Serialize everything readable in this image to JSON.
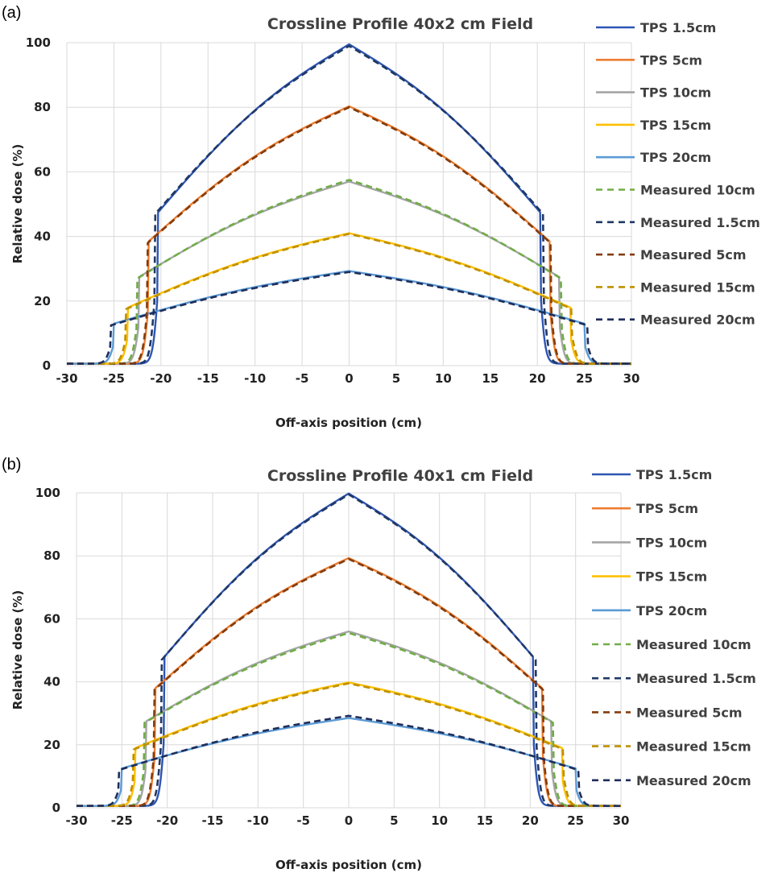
{
  "chart_data": [
    {
      "type": "line",
      "panel_label": "(a)",
      "title": "Crossline Profile 40x2 cm Field",
      "xlabel": "Off-axis position (cm)",
      "ylabel": "Relative dose (%)",
      "xlim": [
        -30,
        30
      ],
      "ylim": [
        0,
        100
      ],
      "xticks": [
        "-30",
        "-25",
        "-20",
        "-15",
        "-10",
        "-5",
        "0",
        "5",
        "10",
        "15",
        "20",
        "25",
        "30"
      ],
      "yticks": [
        "0",
        "20",
        "40",
        "60",
        "80",
        "100"
      ],
      "grid": true,
      "legend_position": "right",
      "series": [
        {
          "name": "TPS 1.5cm",
          "color": "#2e55b3",
          "style": "solid",
          "edge": 20.3,
          "shoulder": 47.5,
          "peak": 99.5
        },
        {
          "name": "TPS 5cm",
          "color": "#ed7d31",
          "style": "solid",
          "edge": 21.3,
          "shoulder": 38.5,
          "peak": 80.3
        },
        {
          "name": "TPS 10cm",
          "color": "#a5a5a5",
          "style": "solid",
          "edge": 22.3,
          "shoulder": 27.5,
          "peak": 57.0
        },
        {
          "name": "TPS 15cm",
          "color": "#ffc000",
          "style": "solid",
          "edge": 23.5,
          "shoulder": 18.0,
          "peak": 41.0
        },
        {
          "name": "TPS 20cm",
          "color": "#5b9bd5",
          "style": "solid",
          "edge": 25.0,
          "shoulder": 13.0,
          "peak": 29.3
        },
        {
          "name": "Measured 10cm",
          "color": "#70ad47",
          "style": "dashed",
          "edge": 22.5,
          "shoulder": 27.0,
          "peak": 57.5
        },
        {
          "name": "Measured 1.5cm",
          "color": "#203864",
          "style": "dashed",
          "edge": 20.6,
          "shoulder": 47.0,
          "peak": 99.0
        },
        {
          "name": "Measured 5cm",
          "color": "#843c0c",
          "style": "dashed",
          "edge": 21.4,
          "shoulder": 38.0,
          "peak": 80.0
        },
        {
          "name": "Measured 15cm",
          "color": "#bf9000",
          "style": "dashed",
          "edge": 23.7,
          "shoulder": 17.5,
          "peak": 40.8
        },
        {
          "name": "Measured 20cm",
          "color": "#1f2d5a",
          "style": "dashed",
          "edge": 25.3,
          "shoulder": 12.5,
          "peak": 29.0
        }
      ]
    },
    {
      "type": "line",
      "panel_label": "(b)",
      "title": "Crossline Profile 40x1 cm Field",
      "xlabel": "Off-axis position (cm)",
      "ylabel": "Relative dose (%)",
      "xlim": [
        -30,
        30
      ],
      "ylim": [
        0,
        100
      ],
      "xticks": [
        "-30",
        "-25",
        "-20",
        "-15",
        "-10",
        "-5",
        "0",
        "5",
        "10",
        "15",
        "20",
        "25",
        "30"
      ],
      "yticks": [
        "0",
        "20",
        "40",
        "60",
        "80",
        "100"
      ],
      "grid": true,
      "legend_position": "right",
      "series": [
        {
          "name": "TPS 1.5cm",
          "color": "#2e55b3",
          "style": "solid",
          "edge": 20.3,
          "shoulder": 48.0,
          "peak": 99.8
        },
        {
          "name": "TPS 5cm",
          "color": "#ed7d31",
          "style": "solid",
          "edge": 21.3,
          "shoulder": 38.0,
          "peak": 79.3
        },
        {
          "name": "TPS 10cm",
          "color": "#a5a5a5",
          "style": "solid",
          "edge": 22.3,
          "shoulder": 27.5,
          "peak": 56.0
        },
        {
          "name": "TPS 15cm",
          "color": "#ffc000",
          "style": "solid",
          "edge": 23.5,
          "shoulder": 19.0,
          "peak": 39.8
        },
        {
          "name": "TPS 20cm",
          "color": "#5b9bd5",
          "style": "solid",
          "edge": 25.0,
          "shoulder": 12.5,
          "peak": 28.5
        },
        {
          "name": "Measured 10cm",
          "color": "#70ad47",
          "style": "dashed",
          "edge": 22.5,
          "shoulder": 27.0,
          "peak": 55.5
        },
        {
          "name": "Measured 1.5cm",
          "color": "#203864",
          "style": "dashed",
          "edge": 20.6,
          "shoulder": 47.0,
          "peak": 99.5
        },
        {
          "name": "Measured 5cm",
          "color": "#843c0c",
          "style": "dashed",
          "edge": 21.4,
          "shoulder": 37.5,
          "peak": 79.0
        },
        {
          "name": "Measured 15cm",
          "color": "#bf9000",
          "style": "dashed",
          "edge": 23.7,
          "shoulder": 18.5,
          "peak": 39.5
        },
        {
          "name": "Measured 20cm",
          "color": "#1f2d5a",
          "style": "dashed",
          "edge": 25.3,
          "shoulder": 12.0,
          "peak": 29.2
        }
      ]
    }
  ]
}
